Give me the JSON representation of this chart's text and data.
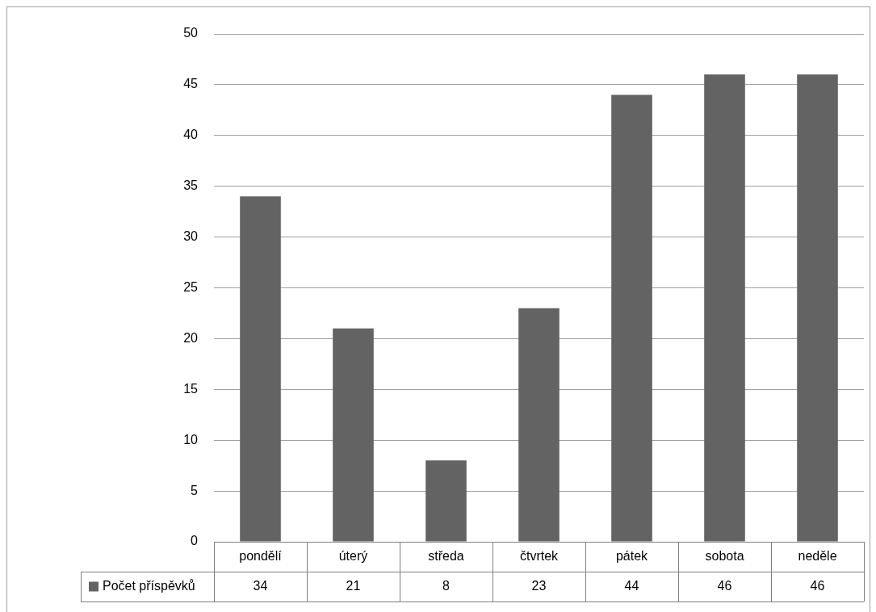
{
  "chart_data": {
    "type": "bar",
    "categories": [
      "pondělí",
      "úterý",
      "středa",
      "čtvrtek",
      "pátek",
      "sobota",
      "neděle"
    ],
    "series": [
      {
        "name": "Počet příspěvků",
        "color": "#636363",
        "values": [
          34,
          21,
          8,
          23,
          44,
          46,
          46
        ]
      }
    ],
    "ylim": [
      0,
      50
    ],
    "yticks": [
      0,
      5,
      10,
      15,
      20,
      25,
      30,
      35,
      40,
      45,
      50
    ],
    "grid": "y",
    "legend": "bottom",
    "data_labels": true
  }
}
